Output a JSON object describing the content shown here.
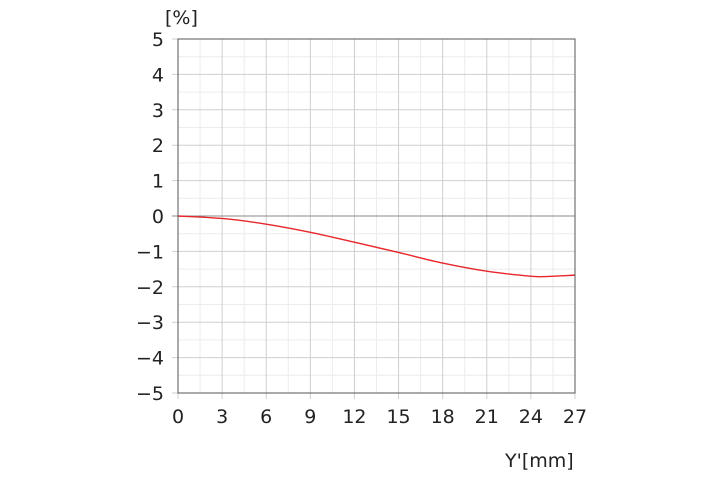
{
  "chart_data": {
    "type": "line",
    "title": "",
    "xlabel": "Y'[mm]",
    "ylabel": "[%]",
    "xlim": [
      0,
      27
    ],
    "ylim": [
      -5,
      5
    ],
    "xticks": [
      0,
      3,
      6,
      9,
      12,
      15,
      18,
      21,
      24,
      27
    ],
    "yticks": [
      5,
      4,
      3,
      2,
      1,
      0,
      -1,
      -2,
      -3,
      -4,
      -5
    ],
    "grid": true,
    "legend": "none",
    "series": [
      {
        "color": "#e8262b",
        "x": [
          0,
          3,
          6,
          9,
          12,
          15,
          18,
          21,
          24,
          25,
          27
        ],
        "y": [
          0,
          -0.07,
          -0.23,
          -0.46,
          -0.74,
          -1.03,
          -1.33,
          -1.56,
          -1.7,
          -1.71,
          -1.67
        ]
      }
    ]
  }
}
